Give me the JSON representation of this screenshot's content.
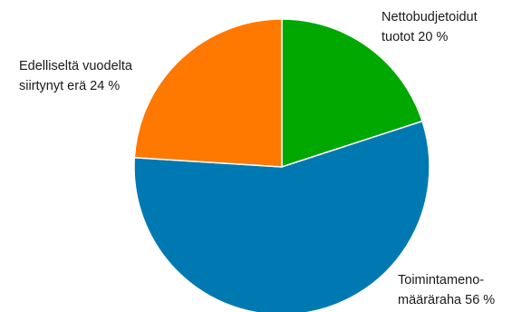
{
  "chart_data": {
    "type": "pie",
    "title": "",
    "slices": [
      {
        "label_lines": [
          "Nettobudjetoidut",
          "tuotot 20 %"
        ],
        "value": 20,
        "color": "#00a800"
      },
      {
        "label_lines": [
          "Toimintameno-",
          "määräraha 56 %"
        ],
        "value": 56,
        "color": "#0079b2"
      },
      {
        "label_lines": [
          "Edelliseltä vuodelta",
          "siirtynyt erä 24 %"
        ],
        "value": 24,
        "color": "#ff7800"
      }
    ],
    "start_angle_deg": 0,
    "direction": "clockwise",
    "legend": "none"
  }
}
